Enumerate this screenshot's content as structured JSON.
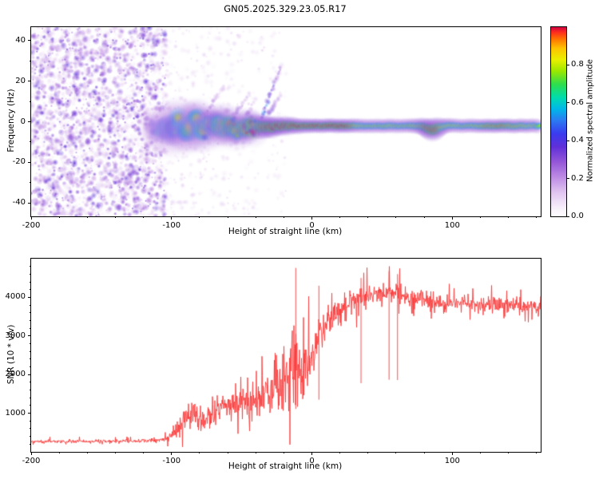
{
  "title": "GN05.2025.329.23.05.R17",
  "chart_data": [
    {
      "type": "heatmap",
      "name": "doppler-spectrogram",
      "xlabel": "Height of straight line (km)",
      "ylabel": "Frequency (Hz)",
      "xlim": [
        -200,
        163
      ],
      "ylim": [
        -46.5,
        46.5
      ],
      "xticks": [
        -200,
        -100,
        0,
        100
      ],
      "xminor_step": 20,
      "yticks": [
        -40,
        -20,
        0,
        20,
        40
      ],
      "yminor_step": 10,
      "grid": false,
      "colorbar": {
        "label": "Normalized spectral amplitude",
        "range": [
          0,
          1
        ],
        "tick_values": [
          0,
          0.2,
          0.4,
          0.6,
          0.8
        ],
        "tick_labels": [
          "0.0",
          "0.2",
          "0.4",
          "0.6",
          "0.8"
        ]
      },
      "colormap_stops": [
        [
          0,
          "#ffffff"
        ],
        [
          0.05,
          "#f6eefa"
        ],
        [
          0.13,
          "#e0c4f0"
        ],
        [
          0.21,
          "#bd8ce4"
        ],
        [
          0.29,
          "#9457d8"
        ],
        [
          0.37,
          "#6030d8"
        ],
        [
          0.44,
          "#3a3cee"
        ],
        [
          0.51,
          "#2b7bf2"
        ],
        [
          0.57,
          "#00b8e8"
        ],
        [
          0.63,
          "#00dcae"
        ],
        [
          0.7,
          "#2edd4e"
        ],
        [
          0.77,
          "#9ce800"
        ],
        [
          0.83,
          "#eaf000"
        ],
        [
          0.89,
          "#ffc400"
        ],
        [
          0.94,
          "#ff7300"
        ],
        [
          0.975,
          "#ff2d1e"
        ],
        [
          1,
          "#d40640"
        ]
      ],
      "noise_region": {
        "x_range": [
          -200,
          -104
        ],
        "amplitude_range": [
          0.03,
          0.38
        ],
        "density": 2600,
        "description": "dense low-amplitude purple speckle (receiver noise) across all frequencies"
      },
      "sparse_noise_region": {
        "x_range": [
          -104,
          -18
        ],
        "amplitude_range": [
          0.03,
          0.14
        ],
        "density": 420
      },
      "echo_trace_columns": [
        "height_km",
        "doppler_hz",
        "amplitude",
        "halfwidth_hz"
      ],
      "echo_trace": [
        [
          -113,
          -3,
          0.4,
          5.0
        ],
        [
          -110,
          -5,
          0.5,
          6.0
        ],
        [
          -107,
          -1,
          0.55,
          6.0
        ],
        [
          -104,
          -4,
          0.6,
          6.5
        ],
        [
          -101,
          -2,
          0.65,
          7.0
        ],
        [
          -98,
          -6,
          0.6,
          7.0
        ],
        [
          -95,
          0,
          0.7,
          7.0
        ],
        [
          -92,
          -3,
          0.75,
          7.0
        ],
        [
          -89,
          -5,
          0.7,
          6.5
        ],
        [
          -86,
          -1,
          0.8,
          6.5
        ],
        [
          -83,
          2,
          0.7,
          6.5
        ],
        [
          -80,
          -2,
          0.8,
          6.5
        ],
        [
          -77,
          -5,
          0.75,
          6.0
        ],
        [
          -74,
          -1,
          0.85,
          6.0
        ],
        [
          -71,
          -3,
          0.8,
          6.0
        ],
        [
          -68,
          1,
          0.75,
          6.0
        ],
        [
          -65,
          -2,
          0.85,
          5.5
        ],
        [
          -62,
          -4,
          0.8,
          5.5
        ],
        [
          -59,
          -1,
          0.85,
          5.0
        ],
        [
          -56,
          -3,
          0.9,
          5.0
        ],
        [
          -53,
          -5,
          0.85,
          5.0
        ],
        [
          -50,
          -2,
          0.9,
          5.0
        ],
        [
          -47,
          -4,
          0.88,
          4.5
        ],
        [
          -44,
          -2,
          0.92,
          4.5
        ],
        [
          -41,
          -3,
          0.95,
          4.0
        ],
        [
          -38,
          -2,
          0.92,
          4.0
        ],
        [
          -35,
          -3,
          0.95,
          3.8
        ],
        [
          -32,
          -2,
          0.95,
          3.6
        ],
        [
          -29,
          -3,
          0.98,
          3.4
        ],
        [
          -26,
          -2,
          1.0,
          3.2
        ],
        [
          -23,
          -2.5,
          1.0,
          3.0
        ],
        [
          -20,
          -2,
          1.0,
          3.0
        ],
        [
          -17,
          -2.5,
          1.0,
          2.9
        ],
        [
          -14,
          -2,
          0.99,
          2.8
        ],
        [
          -10,
          -2.2,
          0.98,
          2.6
        ],
        [
          -6,
          -2,
          0.97,
          2.5
        ],
        [
          0,
          -2,
          0.98,
          2.4
        ],
        [
          6,
          -2,
          0.96,
          2.4
        ],
        [
          12,
          -2,
          0.98,
          2.4
        ],
        [
          18,
          -2,
          0.97,
          2.4
        ],
        [
          24,
          -2,
          0.99,
          2.4
        ],
        [
          30,
          -2,
          0.9,
          2.4
        ],
        [
          36,
          -2,
          0.8,
          2.4
        ],
        [
          44,
          -2,
          0.78,
          2.4
        ],
        [
          52,
          -2,
          0.82,
          2.4
        ],
        [
          60,
          -2,
          0.78,
          2.4
        ],
        [
          68,
          -2,
          0.8,
          2.4
        ],
        [
          76,
          -2,
          0.85,
          2.6
        ],
        [
          82,
          -3,
          0.95,
          3.2
        ],
        [
          86,
          -4,
          1.0,
          3.8
        ],
        [
          90,
          -3,
          0.95,
          3.2
        ],
        [
          94,
          -2,
          0.85,
          2.6
        ],
        [
          100,
          -2,
          0.8,
          2.4
        ],
        [
          108,
          -2,
          0.78,
          2.4
        ],
        [
          116,
          -2,
          0.82,
          2.4
        ],
        [
          124,
          -2,
          0.9,
          2.4
        ],
        [
          132,
          -2,
          0.93,
          2.4
        ],
        [
          140,
          -2,
          0.9,
          2.4
        ],
        [
          148,
          -2,
          0.85,
          2.4
        ],
        [
          155,
          -2,
          0.8,
          2.4
        ],
        [
          163,
          -2,
          0.78,
          2.4
        ]
      ],
      "streaks": [
        {
          "x0": -78,
          "y0": 2,
          "x1": -62,
          "y1": 18,
          "amp": 0.25
        },
        {
          "x0": -57,
          "y0": 1,
          "x1": -44,
          "y1": 14,
          "amp": 0.3
        },
        {
          "x0": -36,
          "y0": 2,
          "x1": -22,
          "y1": 27,
          "amp": 0.5
        },
        {
          "x0": -31,
          "y0": 4,
          "x1": -22,
          "y1": 14,
          "amp": 0.3
        },
        {
          "x0": -47,
          "y0": 3,
          "x1": -40,
          "y1": 11,
          "amp": 0.25
        }
      ]
    },
    {
      "type": "line",
      "name": "snr-profile",
      "xlabel": "Height of straight line (km)",
      "ylabel": "SNR (10 * v/v)",
      "xlim": [
        -200,
        163
      ],
      "ylim": [
        0,
        5000
      ],
      "xticks": [
        -200,
        -100,
        0,
        100
      ],
      "xminor_step": 20,
      "yticks": [
        1000,
        2000,
        3000,
        4000
      ],
      "yminor_step": 200,
      "line_color": "#fb3b3b",
      "envelope_columns": [
        "height_km",
        "snr_mean",
        "snr_noise_halfrange"
      ],
      "envelope": [
        [
          -200,
          270,
          70
        ],
        [
          -160,
          270,
          70
        ],
        [
          -130,
          275,
          75
        ],
        [
          -115,
          285,
          80
        ],
        [
          -108,
          300,
          100
        ],
        [
          -102,
          360,
          170
        ],
        [
          -98,
          520,
          320
        ],
        [
          -94,
          700,
          450
        ],
        [
          -90,
          850,
          550
        ],
        [
          -86,
          950,
          600
        ],
        [
          -82,
          900,
          600
        ],
        [
          -78,
          760,
          500
        ],
        [
          -74,
          850,
          560
        ],
        [
          -70,
          950,
          650
        ],
        [
          -66,
          1050,
          700
        ],
        [
          -62,
          1100,
          760
        ],
        [
          -58,
          1150,
          800
        ],
        [
          -54,
          1350,
          950
        ],
        [
          -50,
          1300,
          950
        ],
        [
          -46,
          1250,
          920
        ],
        [
          -42,
          1350,
          1000
        ],
        [
          -38,
          1450,
          1060
        ],
        [
          -34,
          1550,
          1150
        ],
        [
          -30,
          1650,
          1250
        ],
        [
          -26,
          1750,
          1320
        ],
        [
          -22,
          1850,
          1400
        ],
        [
          -18,
          2000,
          1500
        ],
        [
          -14,
          2300,
          1750
        ],
        [
          -11,
          2500,
          1900
        ],
        [
          -9,
          2100,
          1400
        ],
        [
          -7,
          1900,
          1150
        ],
        [
          -5,
          2000,
          1150
        ],
        [
          -3,
          2200,
          1150
        ],
        [
          0,
          2500,
          1100
        ],
        [
          3,
          2800,
          1000
        ],
        [
          6,
          3100,
          900
        ],
        [
          9,
          3300,
          820
        ],
        [
          12,
          3450,
          760
        ],
        [
          15,
          3550,
          700
        ],
        [
          18,
          3650,
          650
        ],
        [
          22,
          3750,
          600
        ],
        [
          26,
          3850,
          560
        ],
        [
          30,
          3900,
          520
        ],
        [
          35,
          3950,
          480
        ],
        [
          40,
          4000,
          460
        ],
        [
          45,
          4050,
          450
        ],
        [
          50,
          4100,
          450
        ],
        [
          55,
          4150,
          470
        ],
        [
          60,
          4150,
          460
        ],
        [
          65,
          4050,
          420
        ],
        [
          70,
          4000,
          400
        ],
        [
          75,
          3950,
          380
        ],
        [
          80,
          3950,
          380
        ],
        [
          85,
          3900,
          360
        ],
        [
          90,
          3850,
          360
        ],
        [
          95,
          3850,
          340
        ],
        [
          100,
          3850,
          320
        ],
        [
          110,
          3850,
          300
        ],
        [
          120,
          3800,
          300
        ],
        [
          130,
          3780,
          290
        ],
        [
          140,
          3800,
          290
        ],
        [
          150,
          3760,
          280
        ],
        [
          158,
          3720,
          280
        ],
        [
          163,
          3700,
          280
        ]
      ],
      "spikes": [
        [
          -11.5,
          4760
        ],
        [
          5,
          4300
        ],
        [
          35,
          4500
        ],
        [
          55,
          4680
        ],
        [
          61,
          4600
        ]
      ]
    }
  ]
}
